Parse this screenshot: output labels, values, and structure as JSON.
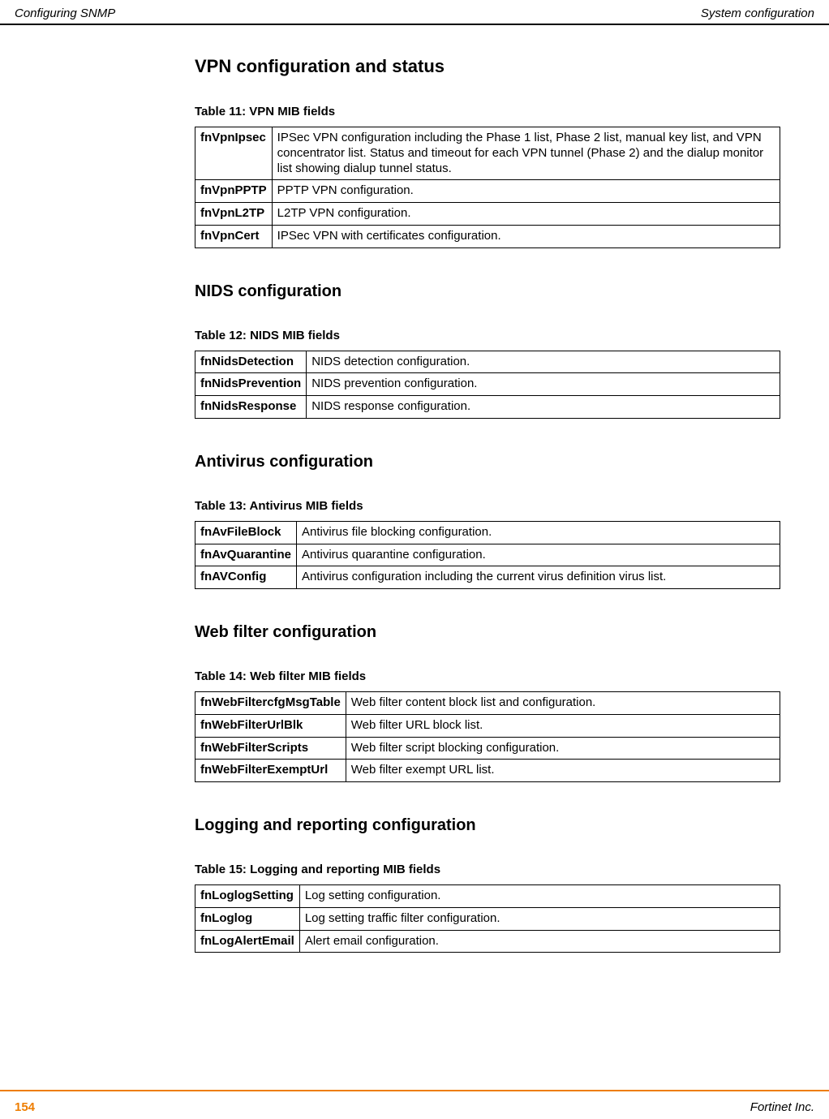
{
  "header": {
    "left": "Configuring SNMP",
    "right": "System configuration"
  },
  "sections": [
    {
      "heading_level": "h2",
      "heading": "VPN configuration and status",
      "table_caption": "Table 11: VPN MIB fields",
      "rows": [
        {
          "k": "fnVpnIpsec",
          "v": "IPSec VPN configuration including the Phase 1 list, Phase 2 list, manual key list, and VPN concentrator list. Status and timeout for each VPN tunnel (Phase 2) and the dialup monitor list showing dialup tunnel status."
        },
        {
          "k": "fnVpnPPTP",
          "v": "PPTP VPN configuration."
        },
        {
          "k": "fnVpnL2TP",
          "v": "L2TP VPN configuration."
        },
        {
          "k": "fnVpnCert",
          "v": "IPSec VPN with certificates configuration."
        }
      ]
    },
    {
      "heading_level": "h3",
      "heading": "NIDS configuration",
      "table_caption": "Table 12: NIDS MIB fields",
      "rows": [
        {
          "k": "fnNidsDetection",
          "v": "NIDS detection configuration."
        },
        {
          "k": "fnNidsPrevention",
          "v": "NIDS prevention configuration."
        },
        {
          "k": "fnNidsResponse",
          "v": "NIDS response configuration."
        }
      ]
    },
    {
      "heading_level": "h3",
      "heading": "Antivirus configuration",
      "table_caption": "Table 13: Antivirus MIB fields",
      "rows": [
        {
          "k": "fnAvFileBlock",
          "v": "Antivirus file blocking configuration."
        },
        {
          "k": "fnAvQuarantine",
          "v": "Antivirus quarantine configuration."
        },
        {
          "k": "fnAVConfig",
          "v": "Antivirus configuration including the current virus definition virus list."
        }
      ]
    },
    {
      "heading_level": "h3",
      "heading": "Web filter configuration",
      "table_caption": "Table 14: Web filter MIB fields",
      "rows": [
        {
          "k": "fnWebFiltercfgMsgTable",
          "v": "Web filter content block list and configuration."
        },
        {
          "k": "fnWebFilterUrlBlk",
          "v": "Web filter URL block list."
        },
        {
          "k": "fnWebFilterScripts",
          "v": "Web filter script blocking configuration."
        },
        {
          "k": "fnWebFilterExemptUrl",
          "v": "Web filter exempt URL list."
        }
      ]
    },
    {
      "heading_level": "h3",
      "heading": "Logging and reporting configuration",
      "table_caption": "Table 15: Logging and reporting MIB fields",
      "rows": [
        {
          "k": "fnLoglogSetting",
          "v": "Log setting configuration."
        },
        {
          "k": "fnLoglog",
          "v": "Log setting traffic filter configuration."
        },
        {
          "k": "fnLogAlertEmail",
          "v": "Alert email configuration."
        }
      ]
    }
  ],
  "footer": {
    "page_number": "154",
    "right": "Fortinet Inc."
  },
  "colors": {
    "rule_orange": "#ee7d00",
    "text": "#000000",
    "background": "#ffffff"
  }
}
